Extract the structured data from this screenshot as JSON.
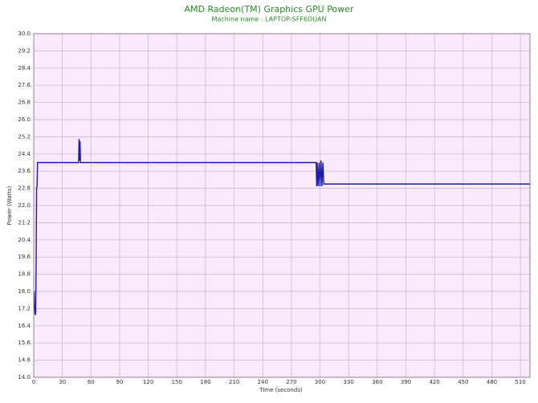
{
  "chart_data": {
    "type": "line",
    "title": "AMD Radeon(TM) Graphics GPU Power",
    "subtitle": "Machine name : LAPTOP-SFF6DUAN",
    "x_label": "Time (seconds)",
    "y_label": "Power (Watts)",
    "x": [
      0.5,
      1,
      1.5,
      2,
      2.5,
      3,
      3.5,
      4,
      47,
      47.5,
      48,
      48.5,
      49,
      296,
      296.5,
      297,
      298,
      299,
      300,
      301,
      302,
      303,
      304,
      305,
      520
    ],
    "series": [
      {
        "name": "GPU Power",
        "color": "#1c1ca8",
        "values": [
          18.0,
          17.2,
          16.9,
          17.0,
          19.0,
          22.8,
          22.9,
          24.0,
          24.0,
          25.1,
          24.1,
          25.0,
          24.0,
          24.0,
          22.9,
          24.0,
          22.9,
          24.0,
          22.9,
          24.1,
          22.9,
          24.0,
          23.0,
          23.0,
          23.0
        ]
      }
    ],
    "xlim": [
      0,
      520
    ],
    "xticks": [
      0,
      30,
      60,
      90,
      120,
      150,
      180,
      210,
      240,
      270,
      300,
      330,
      360,
      390,
      420,
      450,
      480,
      510
    ],
    "ylim": [
      14,
      30
    ],
    "yticks": [
      {
        "value": 14,
        "label": "14.0"
      },
      14.8,
      15.6,
      16.4,
      17.2,
      {
        "value": 18,
        "label": "18.0"
      },
      18.8,
      19.6,
      20.4,
      21.2,
      {
        "value": 22,
        "label": "22.0"
      },
      22.8,
      23.6,
      24.4,
      25.2,
      {
        "value": 26,
        "label": "26.0"
      },
      26.8,
      27.6,
      28.4,
      29.2,
      {
        "value": 30,
        "label": "30.0"
      }
    ],
    "grid": true,
    "grid_color": "#cfb0cf"
  }
}
